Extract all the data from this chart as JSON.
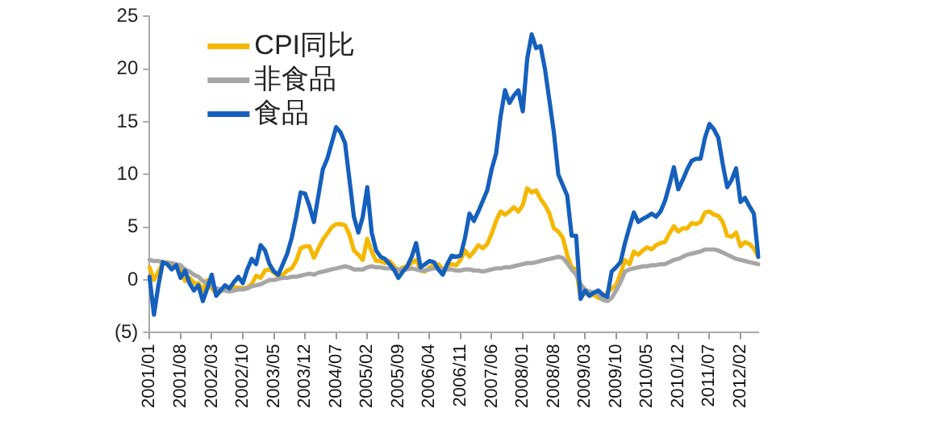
{
  "chart_data": {
    "type": "line",
    "categories": [
      "2001/01",
      null,
      null,
      null,
      null,
      null,
      null,
      "2001/08",
      null,
      null,
      null,
      null,
      null,
      null,
      "2002/03",
      null,
      null,
      null,
      null,
      null,
      null,
      "2002/10",
      null,
      null,
      null,
      null,
      null,
      null,
      "2003/05",
      null,
      null,
      null,
      null,
      null,
      null,
      "2003/12",
      null,
      null,
      null,
      null,
      null,
      null,
      "2004/07",
      null,
      null,
      null,
      null,
      null,
      null,
      "2005/02",
      null,
      null,
      null,
      null,
      null,
      null,
      "2005/09",
      null,
      null,
      null,
      null,
      null,
      null,
      "2006/04",
      null,
      null,
      null,
      null,
      null,
      null,
      "2006/11",
      null,
      null,
      null,
      null,
      null,
      null,
      "2007/06",
      null,
      null,
      null,
      null,
      null,
      null,
      "2008/01",
      null,
      null,
      null,
      null,
      null,
      null,
      "2008/08",
      null,
      null,
      null,
      null,
      null,
      null,
      "2009/03",
      null,
      null,
      null,
      null,
      null,
      null,
      "2009/10",
      null,
      null,
      null,
      null,
      null,
      null,
      "2010/05",
      null,
      null,
      null,
      null,
      null,
      null,
      "2010/12",
      null,
      null,
      null,
      null,
      null,
      null,
      "2011/07",
      null,
      null,
      null,
      null,
      null,
      null,
      "2012/02",
      null,
      null,
      null,
      null
    ],
    "series": [
      {
        "name": "CPI同比",
        "color": "#f5b800",
        "values": [
          1.2,
          0.0,
          0.8,
          1.6,
          1.7,
          1.4,
          1.5,
          1.0,
          -0.1,
          0.2,
          -0.3,
          -0.3,
          -1.0,
          0.0,
          -0.8,
          -1.3,
          -1.1,
          -0.8,
          -0.9,
          -0.7,
          -0.7,
          -0.8,
          -0.7,
          -0.4,
          0.4,
          0.2,
          0.9,
          1.0,
          0.7,
          0.3,
          0.5,
          0.9,
          1.1,
          1.8,
          3.0,
          3.2,
          3.2,
          2.1,
          3.0,
          3.8,
          4.4,
          5.0,
          5.3,
          5.3,
          5.2,
          4.3,
          2.8,
          2.4,
          1.9,
          3.9,
          2.7,
          1.8,
          1.8,
          1.6,
          1.8,
          1.3,
          0.9,
          1.2,
          1.3,
          1.6,
          1.9,
          0.9,
          0.8,
          1.2,
          1.4,
          1.5,
          1.0,
          1.3,
          1.5,
          1.4,
          1.9,
          2.8,
          2.2,
          2.7,
          3.3,
          3.0,
          3.4,
          4.4,
          5.6,
          6.5,
          6.2,
          6.5,
          6.9,
          6.5,
          7.1,
          8.7,
          8.3,
          8.5,
          7.7,
          7.1,
          6.3,
          4.9,
          4.6,
          4.0,
          2.4,
          1.2,
          1.0,
          -1.6,
          -1.2,
          -1.5,
          -1.4,
          -1.7,
          -1.8,
          -1.2,
          -0.8,
          -0.5,
          0.6,
          1.9,
          1.5,
          2.7,
          2.4,
          2.8,
          3.1,
          2.9,
          3.3,
          3.5,
          3.6,
          4.4,
          5.1,
          4.6,
          4.9,
          4.9,
          5.4,
          5.3,
          5.5,
          6.4,
          6.5,
          6.2,
          6.1,
          5.5,
          4.2,
          4.1,
          4.5,
          3.2,
          3.6,
          3.4,
          3.0,
          2.2
        ]
      },
      {
        "name": "非食品",
        "color": "#a6a6a6",
        "values": [
          1.9,
          1.8,
          1.8,
          1.7,
          1.6,
          1.6,
          1.5,
          1.4,
          1.0,
          0.8,
          0.5,
          0.3,
          -0.1,
          -0.3,
          -0.5,
          -0.8,
          -0.9,
          -1.0,
          -1.1,
          -1.0,
          -0.9,
          -0.9,
          -0.8,
          -0.6,
          -0.5,
          -0.4,
          -0.2,
          0.0,
          0.0,
          0.1,
          0.2,
          0.2,
          0.3,
          0.3,
          0.4,
          0.5,
          0.6,
          0.5,
          0.7,
          0.8,
          0.9,
          1.0,
          1.1,
          1.2,
          1.3,
          1.2,
          1.0,
          1.0,
          1.0,
          1.2,
          1.3,
          1.2,
          1.2,
          1.1,
          1.1,
          1.0,
          1.0,
          1.0,
          1.0,
          1.1,
          1.0,
          0.9,
          0.9,
          1.0,
          1.1,
          1.1,
          1.0,
          1.0,
          1.0,
          0.9,
          0.9,
          1.0,
          1.0,
          0.9,
          0.9,
          0.8,
          0.9,
          1.0,
          1.1,
          1.1,
          1.2,
          1.2,
          1.3,
          1.4,
          1.5,
          1.6,
          1.6,
          1.7,
          1.8,
          1.9,
          2.0,
          2.1,
          2.2,
          2.1,
          1.6,
          1.0,
          0.5,
          -0.4,
          -0.9,
          -1.1,
          -1.2,
          -1.3,
          -1.9,
          -2.0,
          -1.7,
          -1.0,
          -0.2,
          0.8,
          1.0,
          1.1,
          1.2,
          1.3,
          1.3,
          1.4,
          1.4,
          1.5,
          1.5,
          1.7,
          1.9,
          2.0,
          2.2,
          2.4,
          2.5,
          2.6,
          2.7,
          2.9,
          2.9,
          2.9,
          2.8,
          2.6,
          2.4,
          2.2,
          2.0,
          1.9,
          1.8,
          1.7,
          1.6,
          1.5
        ]
      },
      {
        "name": "食品",
        "color": "#1560bd",
        "values": [
          0.3,
          -3.3,
          -0.5,
          1.7,
          1.5,
          1.0,
          1.4,
          0.2,
          0.9,
          -0.3,
          -1.0,
          -0.5,
          -2.0,
          -0.8,
          0.5,
          -1.5,
          -1.0,
          -0.5,
          -0.8,
          -0.2,
          0.3,
          -0.3,
          1.0,
          2.0,
          1.5,
          3.3,
          2.8,
          1.5,
          0.8,
          0.5,
          1.5,
          2.5,
          4.0,
          6.0,
          8.3,
          8.2,
          7.0,
          5.5,
          8.0,
          10.5,
          11.5,
          13.0,
          14.5,
          14.0,
          13.0,
          9.5,
          6.0,
          4.5,
          6.0,
          8.8,
          4.5,
          2.8,
          2.2,
          2.0,
          1.5,
          1.0,
          0.2,
          0.8,
          1.3,
          2.2,
          3.5,
          1.2,
          1.5,
          1.8,
          1.7,
          1.0,
          0.5,
          1.5,
          2.3,
          2.2,
          2.3,
          4.0,
          6.3,
          5.6,
          6.5,
          7.5,
          8.5,
          10.5,
          12.0,
          15.5,
          18.0,
          16.8,
          17.5,
          18.0,
          16.0,
          21.0,
          23.3,
          22.0,
          22.2,
          20.0,
          17.0,
          14.0,
          10.0,
          9.0,
          8.0,
          4.2,
          4.2,
          -1.8,
          -1.0,
          -1.5,
          -1.2,
          -1.0,
          -1.4,
          -1.6,
          0.8,
          1.2,
          1.7,
          3.5,
          5.0,
          6.4,
          5.5,
          5.8,
          6.0,
          6.3,
          6.0,
          6.5,
          7.5,
          9.0,
          10.7,
          8.6,
          9.5,
          10.5,
          11.3,
          11.5,
          11.5,
          13.5,
          14.8,
          14.3,
          13.5,
          11.0,
          8.8,
          9.5,
          10.6,
          7.4,
          7.8,
          7.0,
          6.3,
          2.2
        ]
      }
    ],
    "ylim": [
      -5,
      25
    ],
    "yticks": [
      {
        "value": -5,
        "label": "(5)"
      },
      0,
      5,
      10,
      15,
      20,
      25
    ],
    "grid": false,
    "legend": "top left",
    "marker": "none",
    "line_style": "solid"
  }
}
